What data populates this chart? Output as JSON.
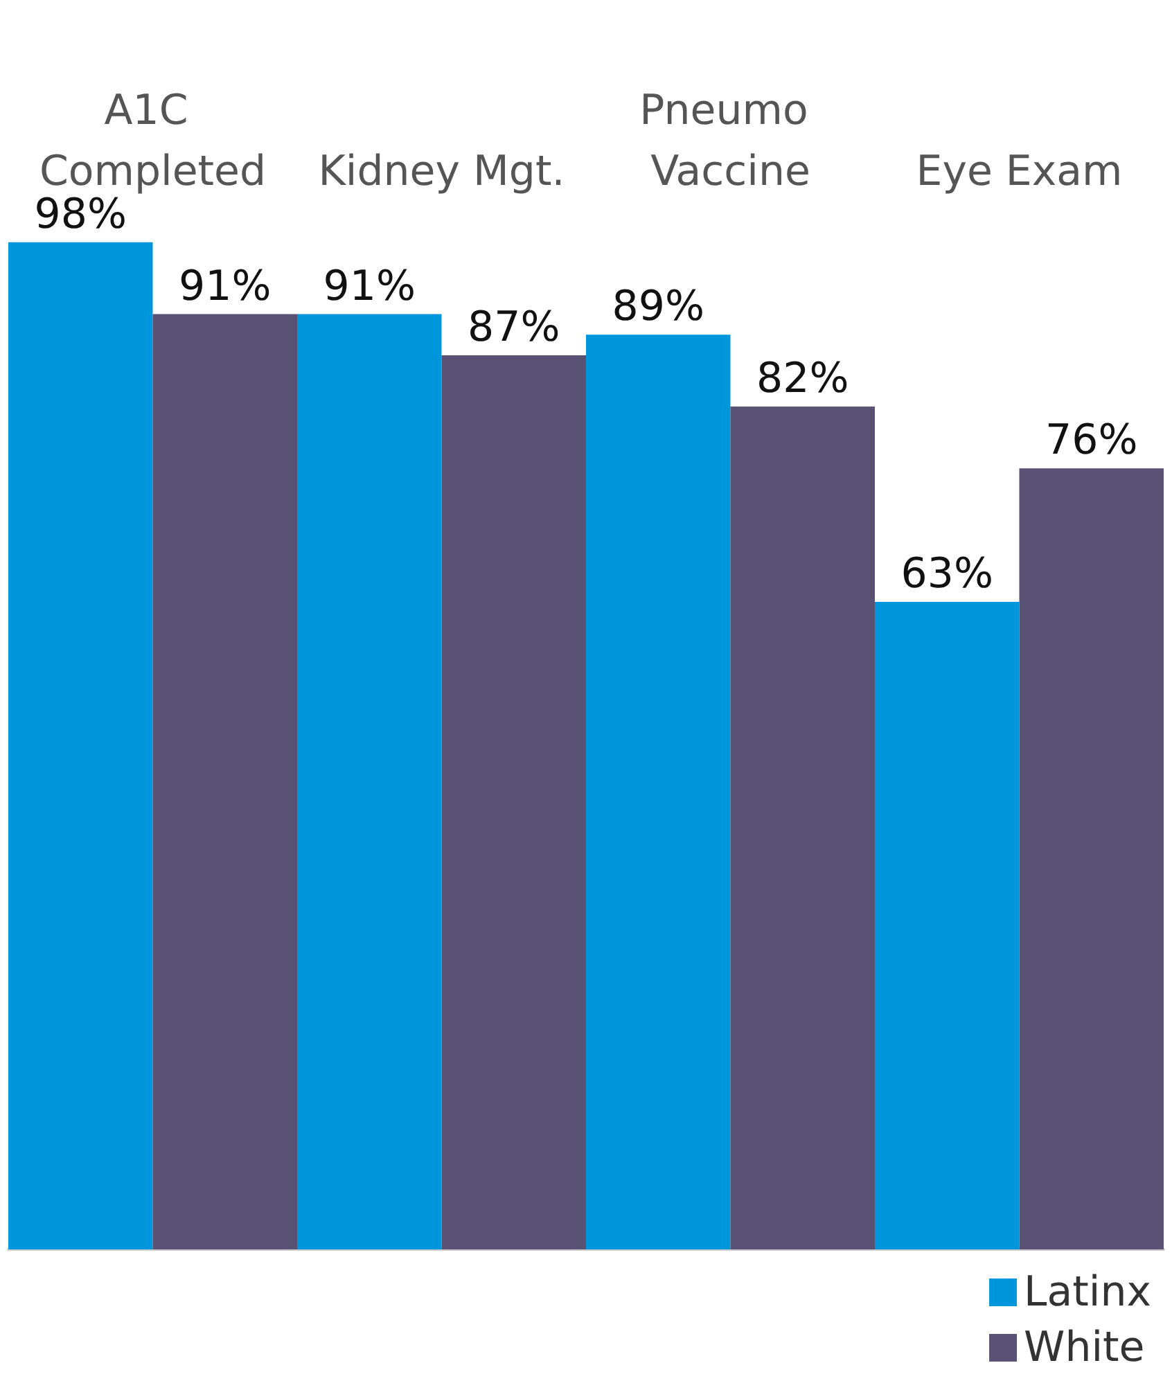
{
  "chart_data": {
    "type": "bar",
    "categories": [
      "A1C Completed",
      "Kidney Mgt.",
      "Pneumo Vaccine",
      "Eye Exam"
    ],
    "series": [
      {
        "name": "Latinx",
        "color": "#0096dc",
        "values": [
          98,
          91,
          89,
          63
        ],
        "value_labels": [
          "98%",
          "91%",
          "89%",
          "63%"
        ]
      },
      {
        "name": "White",
        "color": "#5a5275",
        "values": [
          91,
          87,
          82,
          76
        ],
        "value_labels": [
          "91%",
          "87%",
          "82%",
          "76%"
        ]
      }
    ],
    "legend": "bottom right",
    "grid": false
  }
}
